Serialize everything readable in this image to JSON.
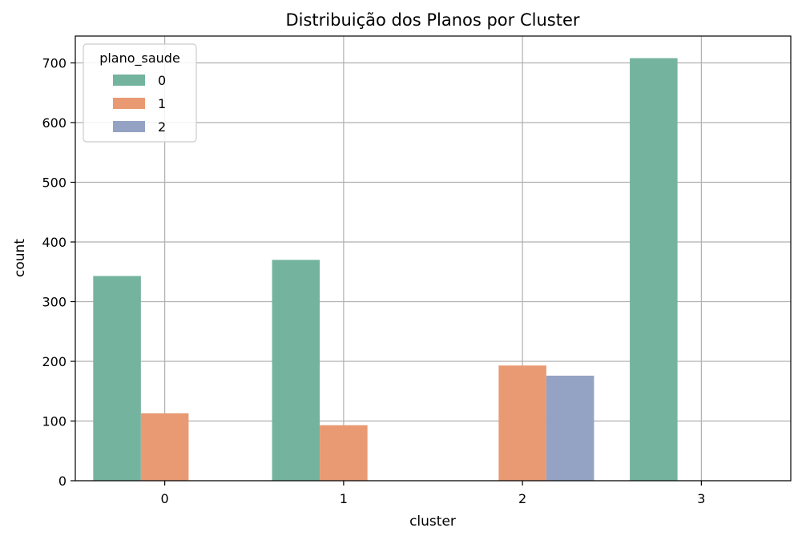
{
  "chart_data": {
    "type": "bar",
    "title": "Distribuição dos Planos por Cluster",
    "xlabel": "cluster",
    "ylabel": "count",
    "categories": [
      "0",
      "1",
      "2",
      "3"
    ],
    "yticks": [
      0,
      100,
      200,
      300,
      400,
      500,
      600,
      700
    ],
    "ylim": [
      0,
      745
    ],
    "grid": true,
    "legend": {
      "title": "plano_saude",
      "placement": "top-left"
    },
    "series": [
      {
        "name": "0",
        "color": "#74b49f",
        "values": [
          343,
          370,
          0,
          708
        ]
      },
      {
        "name": "1",
        "color": "#e99a73",
        "values": [
          113,
          93,
          193,
          0
        ]
      },
      {
        "name": "2",
        "color": "#94a3c4",
        "values": [
          0,
          0,
          176,
          0
        ]
      }
    ]
  }
}
